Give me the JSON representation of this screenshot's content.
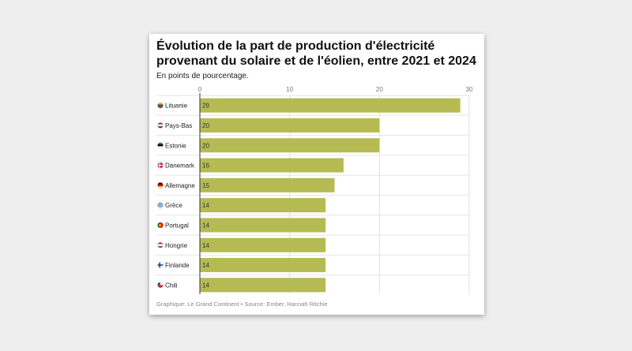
{
  "chart_data": {
    "type": "bar",
    "orientation": "horizontal",
    "title": "Évolution de la part de production d'électricité provenant du solaire et de l'éolien, entre 2021 et 2024",
    "subtitle": "En points de pourcentage.",
    "source": "Graphique: Le Grand Continent • Source: Ember, Hannah Ritchie",
    "categories": [
      "Lituanie",
      "Pays-Bas",
      "Estonie",
      "Danemark",
      "Allemagne",
      "Grèce",
      "Portugal",
      "Hongrie",
      "Finlande",
      "Chili"
    ],
    "flags": [
      "flag-lithuania",
      "flag-netherlands",
      "flag-estonia",
      "flag-denmark",
      "flag-germany",
      "flag-greece",
      "flag-portugal",
      "flag-hungary",
      "flag-finland",
      "flag-chile"
    ],
    "values": [
      29,
      20,
      20,
      16,
      15,
      14,
      14,
      14,
      14,
      14
    ],
    "value_labels": [
      "29",
      "20",
      "20",
      "16",
      "15",
      "14",
      "14",
      "14",
      "14",
      "14"
    ],
    "xlim": [
      0,
      30
    ],
    "xticks": [
      "0",
      "10",
      "20",
      "30"
    ],
    "bar_color": "#b5bb52",
    "grid": true,
    "xaxis_position": "top"
  }
}
